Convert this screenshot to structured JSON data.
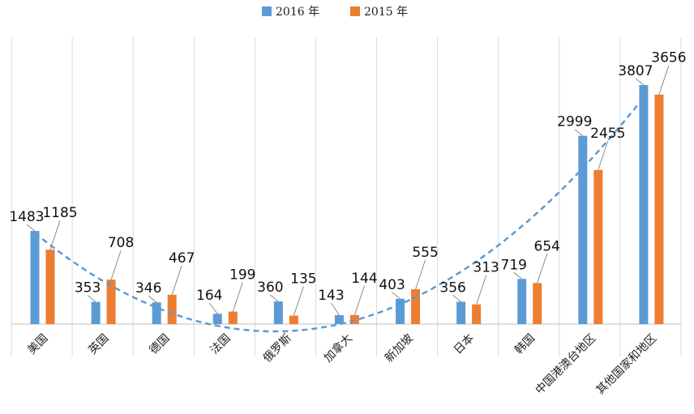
{
  "chart_data": {
    "type": "bar",
    "title": "",
    "categories": [
      "美国",
      "英国",
      "德国",
      "法国",
      "俄罗斯",
      "加拿大",
      "新加坡",
      "日本",
      "韩国",
      "中国港澳台地区",
      "其他国家和地区"
    ],
    "series": [
      {
        "name": "2016 年",
        "color": "#5B9BD5",
        "values": [
          1483,
          353,
          346,
          164,
          360,
          143,
          403,
          356,
          719,
          2999,
          3807
        ]
      },
      {
        "name": "2015 年",
        "color": "#ED7D31",
        "values": [
          1185,
          708,
          467,
          199,
          135,
          144,
          555,
          313,
          654,
          2455,
          3656
        ]
      }
    ],
    "trendline": {
      "type": "polynomial",
      "series": "2016 年",
      "style": "dashed",
      "color": "#5B9BD5"
    },
    "ylim": [
      0,
      3807
    ],
    "grid": "vertical",
    "legend": "top-center",
    "xlabel": "",
    "ylabel": ""
  }
}
